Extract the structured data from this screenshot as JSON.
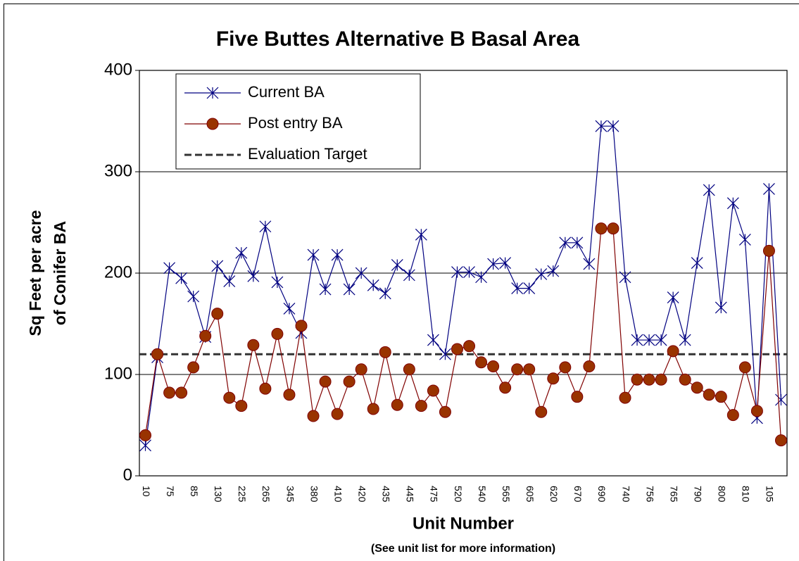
{
  "chart_data": {
    "type": "line",
    "title": "Five Buttes Alternative B Basal Area",
    "ylabel": [
      "Sq Feet per acre",
      "of Conifer BA"
    ],
    "xlabel": "Unit Number",
    "xsublabel": "(See unit list for more information)",
    "categories": [
      "10",
      null,
      "75",
      null,
      "85",
      null,
      "130",
      null,
      "225",
      null,
      "265",
      null,
      "345",
      null,
      "380",
      null,
      "410",
      null,
      "420",
      null,
      "435",
      null,
      "445",
      null,
      "475",
      null,
      "520",
      null,
      "540",
      null,
      "565",
      null,
      "605",
      null,
      "620",
      null,
      "670",
      null,
      "690",
      null,
      "740",
      null,
      "756",
      null,
      "765",
      null,
      "790",
      null,
      "800",
      null,
      "810",
      null,
      "105",
      null
    ],
    "series": [
      {
        "name": "Current BA",
        "color": "#000080",
        "marker": "star",
        "values": [
          30,
          117,
          205,
          195,
          177,
          137,
          207,
          192,
          220,
          197,
          246,
          191,
          165,
          141,
          218,
          184,
          218,
          184,
          200,
          188,
          180,
          208,
          198,
          238,
          134,
          120,
          201,
          201,
          196,
          209,
          210,
          185,
          185,
          199,
          202,
          230,
          230,
          209,
          345,
          345,
          196,
          134,
          134,
          134,
          176,
          134,
          210,
          282,
          166,
          269,
          233,
          57,
          283,
          75
        ]
      },
      {
        "name": "Post entry BA",
        "color": "#800000",
        "marker": "circle",
        "marker_fill": "#993300",
        "values": [
          40,
          120,
          82,
          82,
          107,
          138,
          160,
          77,
          69,
          129,
          86,
          140,
          80,
          148,
          59,
          93,
          61,
          93,
          105,
          66,
          122,
          70,
          105,
          69,
          84,
          63,
          125,
          128,
          112,
          108,
          87,
          105,
          105,
          63,
          96,
          107,
          78,
          108,
          244,
          244,
          77,
          95,
          95,
          95,
          123,
          95,
          87,
          80,
          78,
          60,
          107,
          64,
          222,
          35
        ]
      }
    ],
    "target_line": {
      "name": "Evaluation Target",
      "value": 120,
      "color": "#333333"
    },
    "ylim": [
      0,
      400
    ],
    "yticks": [
      0,
      100,
      200,
      300,
      400
    ],
    "grid": true,
    "legend": "upper left"
  }
}
